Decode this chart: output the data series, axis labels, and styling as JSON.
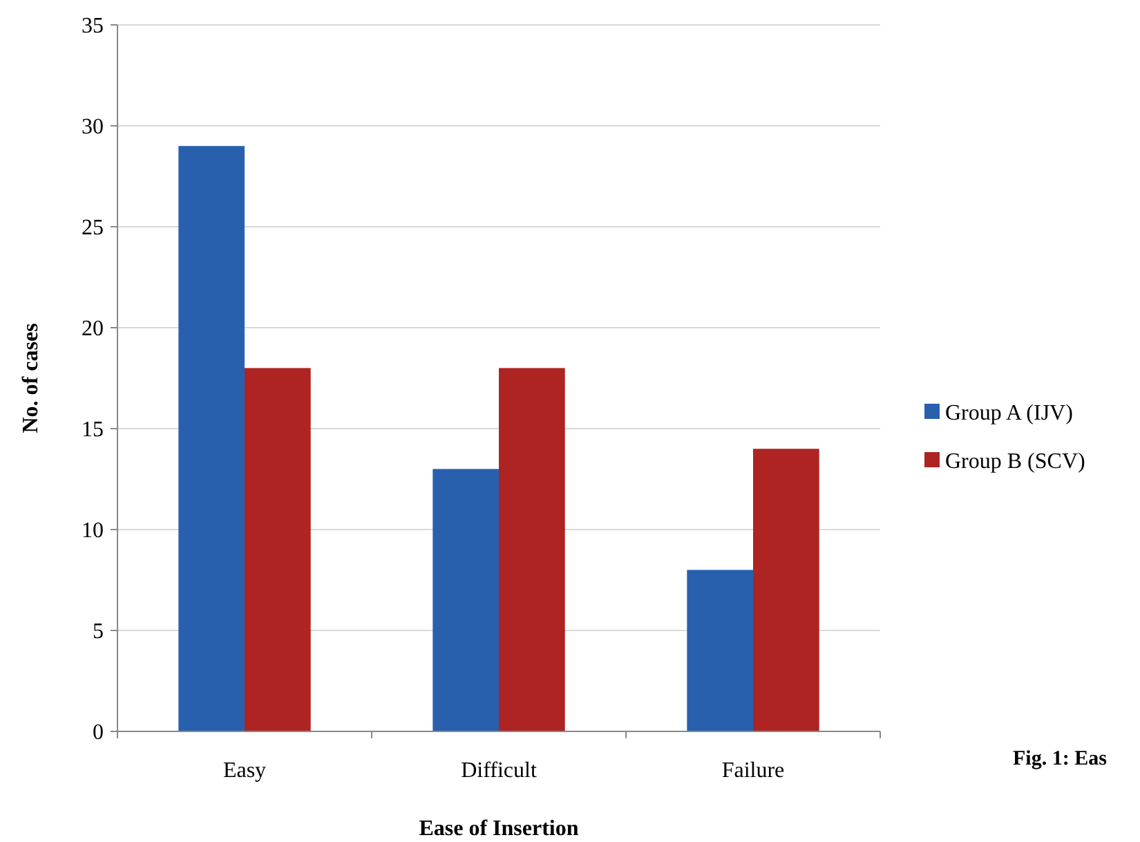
{
  "chart_data": {
    "type": "bar",
    "xlabel": "Ease of Insertion",
    "ylabel": "No. of cases",
    "categories": [
      "Easy",
      "Difficult",
      "Failure"
    ],
    "series": [
      {
        "name": "Group A (IJV)",
        "color": "#2860ae",
        "values": [
          29,
          13,
          8
        ]
      },
      {
        "name": "Group B (SCV)",
        "color": "#ad2422",
        "values": [
          18,
          18,
          14
        ]
      }
    ],
    "ylim": [
      0,
      35
    ],
    "yticks": [
      0,
      5,
      10,
      15,
      20,
      25,
      30,
      35
    ],
    "grid": "y",
    "legend": "right",
    "annotations": [
      "Fig. 1: Eas"
    ]
  }
}
